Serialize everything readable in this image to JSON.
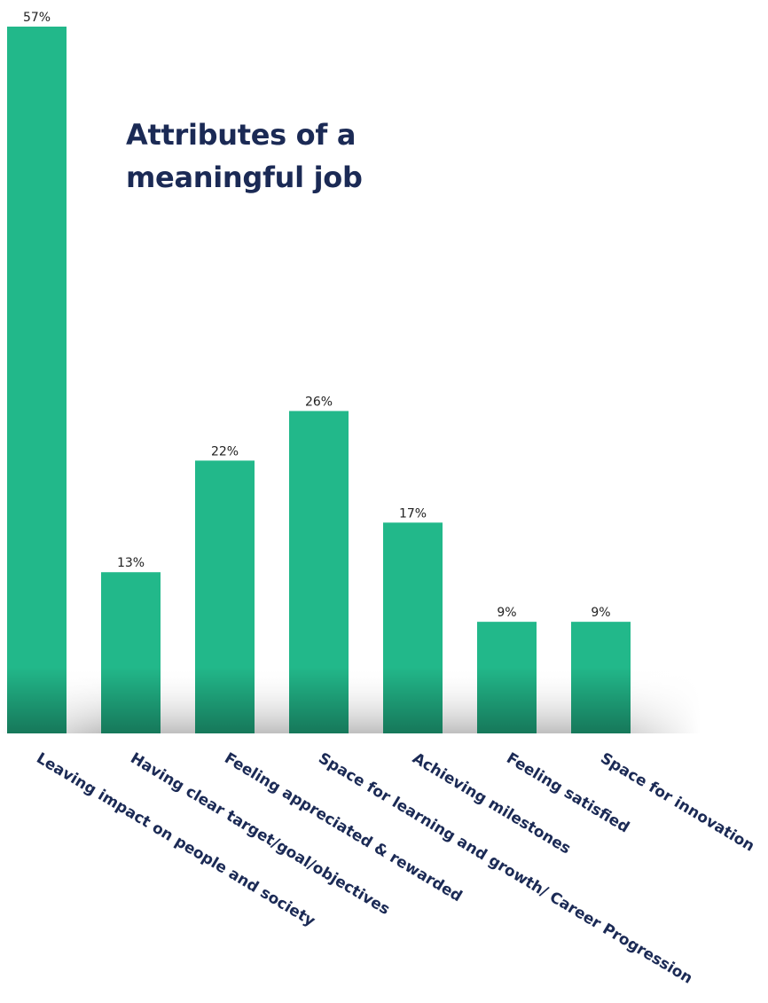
{
  "chart_data": {
    "type": "bar",
    "title": "Attributes of a meaningful job",
    "categories": [
      "Leaving impact on people and society",
      "Having clear target/goal/objectives",
      "Feeling appreciated & rewarded",
      "Space for learning and growth/ Career Progression",
      "Achieving milestones",
      "Feeling satisfied",
      "Space for innovation"
    ],
    "values": [
      57,
      13,
      22,
      26,
      17,
      9,
      9
    ],
    "data_labels": [
      "57%",
      "13%",
      "22%",
      "26%",
      "17%",
      "9%",
      "9%"
    ],
    "ylim": [
      0,
      57
    ],
    "grid": false,
    "legend": "none",
    "colors": {
      "bar": "#22b88a",
      "bar_shadow": "#0f7a58",
      "label": "#1b2a55",
      "value_label": "#222222"
    }
  }
}
